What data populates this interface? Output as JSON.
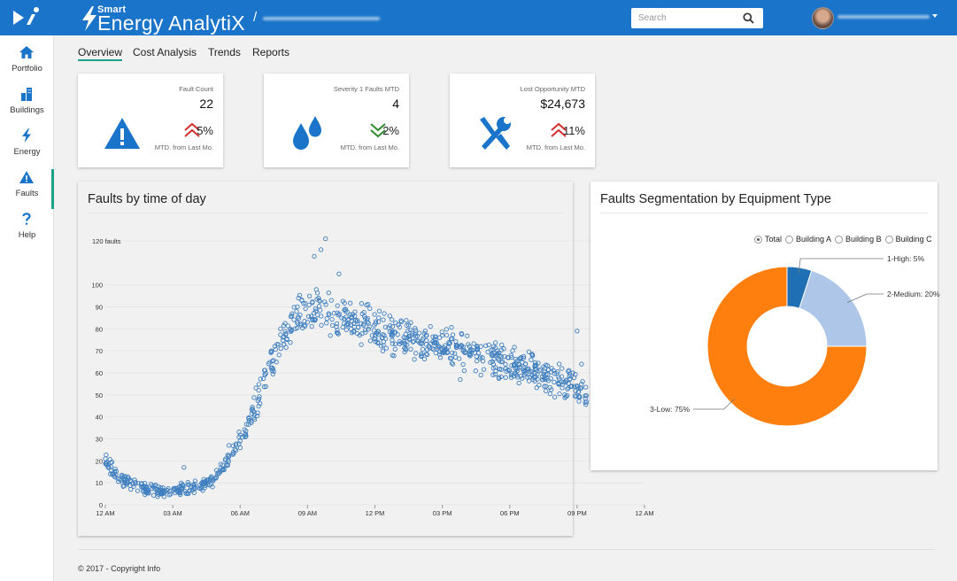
{
  "header": {
    "brand_small": "Smart",
    "brand_name": "Energy AnalytiX",
    "breadcrumb_sep": "/",
    "search_placeholder": "Search",
    "logo_icon": "logo-arrow-i-icon",
    "search_icon": "magnifier-icon"
  },
  "sidebar": {
    "items": [
      {
        "label": "Portfolio",
        "icon": "home-icon"
      },
      {
        "label": "Buildings",
        "icon": "buildings-icon"
      },
      {
        "label": "Energy",
        "icon": "bolt-icon"
      },
      {
        "label": "Faults",
        "icon": "warning-icon",
        "active": true
      },
      {
        "label": "Help",
        "icon": "question-icon"
      }
    ]
  },
  "tabs": [
    {
      "label": "Overview",
      "active": true
    },
    {
      "label": "Cost Analysis"
    },
    {
      "label": "Trends"
    },
    {
      "label": "Reports"
    }
  ],
  "kpis": [
    {
      "label": "Fault Count",
      "value": "22",
      "trend": "5%",
      "trend_dir": "up",
      "trend_color": "#d32f2f",
      "sub": "MTD. from Last Mo.",
      "icon": "warning-triangle-icon"
    },
    {
      "label": "Severity 1 Faults MTD",
      "value": "4",
      "trend": "2%",
      "trend_dir": "down",
      "trend_color": "#2e8b2e",
      "sub": "MTD. from Last Mo.",
      "icon": "water-drops-icon"
    },
    {
      "label": "Lost Opportunity MTD",
      "value": "$24,673",
      "trend": "11%",
      "trend_dir": "up",
      "trend_color": "#d32f2f",
      "sub": "MTD. from Last Mo.",
      "icon": "wrench-screwdriver-icon"
    }
  ],
  "faults_chart": {
    "title": "Faults by time of day"
  },
  "segmentation": {
    "title": "Faults Segmentation by Equipment Type",
    "legend": [
      {
        "label": "Total",
        "checked": true
      },
      {
        "label": "Building A",
        "checked": false
      },
      {
        "label": "Building B",
        "checked": false
      },
      {
        "label": "Building C",
        "checked": false
      }
    ]
  },
  "footer": {
    "text": "© 2017 - Copyright Info"
  },
  "chart_data": [
    {
      "type": "scatter",
      "title": "Faults by time of day",
      "ylabel": "faults",
      "ylim": [
        0,
        120
      ],
      "yticks": [
        0,
        10,
        20,
        30,
        40,
        50,
        60,
        70,
        80,
        90,
        100,
        120
      ],
      "x_tick_labels": [
        "12 AM",
        "03 AM",
        "06 AM",
        "09 AM",
        "12 PM",
        "03 PM",
        "06 PM",
        "09 PM",
        "12 AM"
      ],
      "xlim_hours": [
        0,
        24
      ],
      "grid": true,
      "marker_color": "#3f7fbf",
      "trend_hours": [
        0,
        0.5,
        1,
        1.5,
        2,
        2.5,
        3,
        3.5,
        4,
        4.5,
        5,
        5.5,
        6,
        6.5,
        7,
        7.5,
        8,
        8.5,
        9,
        9.5,
        10,
        10.5,
        11,
        11.5,
        12,
        12.5,
        13,
        13.5,
        14,
        15,
        16,
        17,
        18,
        19,
        20,
        21.5
      ],
      "trend_values": [
        20,
        13,
        10,
        8,
        7,
        6.5,
        6.5,
        7,
        8,
        10,
        13,
        20,
        30,
        40,
        55,
        67,
        77,
        86,
        90,
        88,
        87,
        86,
        84,
        82,
        80,
        78,
        76,
        75,
        74,
        72,
        70,
        67,
        64,
        61,
        57,
        52
      ],
      "outliers": [
        {
          "x": 9.3,
          "y": 113
        },
        {
          "x": 9.6,
          "y": 116
        },
        {
          "x": 9.8,
          "y": 121
        },
        {
          "x": 10.4,
          "y": 105
        },
        {
          "x": 8.6,
          "y": 94
        },
        {
          "x": 7.8,
          "y": 80
        },
        {
          "x": 6.5,
          "y": 38
        },
        {
          "x": 5.5,
          "y": 27
        },
        {
          "x": 3.5,
          "y": 17
        },
        {
          "x": 15.8,
          "y": 57
        },
        {
          "x": 21.0,
          "y": 79
        },
        {
          "x": 21.2,
          "y": 64
        }
      ]
    },
    {
      "type": "pie",
      "donut": true,
      "title": "Faults Segmentation by Equipment Type",
      "slices": [
        {
          "label": "1-High",
          "value": 5,
          "display": "1-High: 5%",
          "color": "#1f6fb5"
        },
        {
          "label": "2-Medium",
          "value": 20,
          "display": "2-Medium: 20%",
          "color": "#aec7e8"
        },
        {
          "label": "3-Low",
          "value": 75,
          "display": "3-Low: 75%",
          "color": "#ff7f0e"
        }
      ]
    }
  ]
}
